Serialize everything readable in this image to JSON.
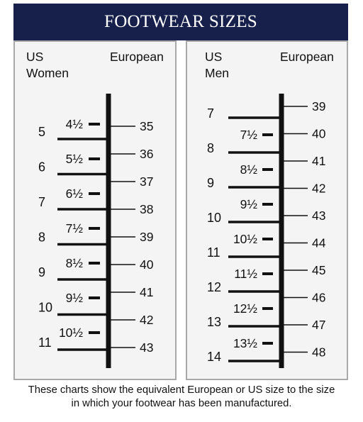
{
  "title": "FOOTWEAR SIZES",
  "women": {
    "header_us_1": "US",
    "header_us_2": "Women",
    "header_eu": "European",
    "us_whole": [
      "5",
      "6",
      "7",
      "8",
      "9",
      "10",
      "11"
    ],
    "us_half": [
      "4½",
      "5½",
      "6½",
      "7½",
      "8½",
      "9½",
      "10½"
    ],
    "european": [
      "35",
      "36",
      "37",
      "38",
      "39",
      "40",
      "41",
      "42",
      "43"
    ]
  },
  "men": {
    "header_us_1": "US",
    "header_us_2": "Men",
    "header_eu": "European",
    "us_whole": [
      "7",
      "8",
      "9",
      "10",
      "11",
      "12",
      "13",
      "14"
    ],
    "us_half": [
      "7½",
      "8½",
      "9½",
      "10½",
      "11½",
      "12½",
      "13½"
    ],
    "european": [
      "39",
      "40",
      "41",
      "42",
      "43",
      "44",
      "45",
      "46",
      "47",
      "48"
    ]
  },
  "footnote": {
    "line1": "These charts show the equivalent European or US size to the size",
    "line2": "in which your footwear has been manufactured."
  }
}
